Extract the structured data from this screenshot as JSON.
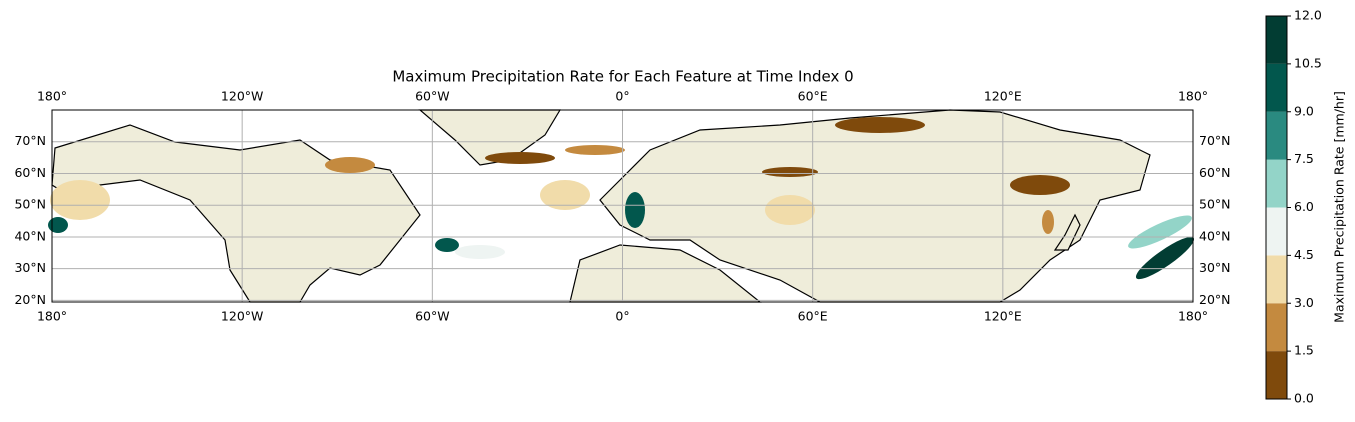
{
  "chart_data": {
    "type": "map",
    "title": "Maximum Precipitation Rate for Each Feature at Time Index 0",
    "xlim": [
      -180,
      180
    ],
    "ylim": [
      19.5,
      80
    ],
    "xticks": [
      {
        "value": -180,
        "label": "180°"
      },
      {
        "value": -120,
        "label": "120°W"
      },
      {
        "value": -60,
        "label": "60°W"
      },
      {
        "value": 0,
        "label": "0°"
      },
      {
        "value": 60,
        "label": "60°E"
      },
      {
        "value": 120,
        "label": "120°E"
      },
      {
        "value": 180,
        "label": "180°"
      }
    ],
    "yticks": [
      {
        "value": 20,
        "label": "20°N"
      },
      {
        "value": 30,
        "label": "30°N"
      },
      {
        "value": 40,
        "label": "40°N"
      },
      {
        "value": 50,
        "label": "50°N"
      },
      {
        "value": 60,
        "label": "60°N"
      },
      {
        "value": 70,
        "label": "70°N"
      }
    ],
    "grid": true,
    "colorbar": {
      "label": "Maximum Precipitation Rate [mm/hr]",
      "lim": [
        0,
        12
      ],
      "ticks": [
        {
          "value": 0,
          "label": "0.0"
        },
        {
          "value": 1.5,
          "label": "1.5"
        },
        {
          "value": 3,
          "label": "3.0"
        },
        {
          "value": 4.5,
          "label": "4.5"
        },
        {
          "value": 6,
          "label": "6.0"
        },
        {
          "value": 7.5,
          "label": "7.5"
        },
        {
          "value": 9,
          "label": "9.0"
        },
        {
          "value": 10.5,
          "label": "10.5"
        },
        {
          "value": 12,
          "label": "12.0"
        }
      ],
      "colors": [
        "#7f4a0c",
        "#c48a3f",
        "#f1dcaa",
        "#eef4f2",
        "#93d4c8",
        "#2a8a80",
        "#02574d",
        "#023d33"
      ]
    }
  }
}
